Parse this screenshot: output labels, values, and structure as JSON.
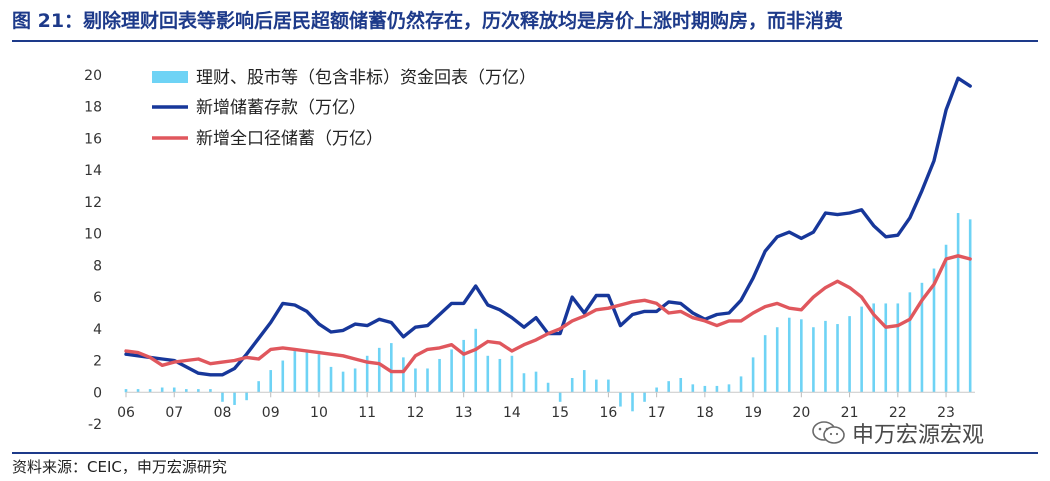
{
  "title": "图 21：剔除理财回表等影响后居民超额储蓄仍然存在，历次释放均是房价上涨时期购房，而非消费",
  "source": "资料来源：CEIC，申万宏源研究",
  "watermark": "申万宏源宏观",
  "watermark_icon": "wechat-icon",
  "colors": {
    "title": "#1d3a8a",
    "bars": "#6ed3f5",
    "deposits": "#17379a",
    "savings": "#e0575d"
  },
  "chart_data": {
    "type": "bar+line",
    "y_range": [
      -2,
      20
    ],
    "y_ticks": [
      "20",
      "18",
      "16",
      "14",
      "12",
      "10",
      "8",
      "6",
      "4",
      "2",
      "0",
      "-2"
    ],
    "x_ticks": [
      "06",
      "07",
      "08",
      "09",
      "10",
      "11",
      "12",
      "13",
      "14",
      "15",
      "16",
      "17",
      "18",
      "19",
      "20",
      "21",
      "22",
      "23"
    ],
    "x_domain": [
      2006.0,
      2023.6
    ],
    "grid": false,
    "legend_position": "top-left",
    "series": [
      {
        "name": "理财、股市等（包含非标）资金回表（万亿）",
        "kind": "bar",
        "x": [
          2006.0,
          2006.25,
          2006.5,
          2006.75,
          2007.0,
          2007.25,
          2007.5,
          2007.75,
          2008.0,
          2008.25,
          2008.5,
          2008.75,
          2009.0,
          2009.25,
          2009.5,
          2009.75,
          2010.0,
          2010.25,
          2010.5,
          2010.75,
          2011.0,
          2011.25,
          2011.5,
          2011.75,
          2012.0,
          2012.25,
          2012.5,
          2012.75,
          2013.0,
          2013.25,
          2013.5,
          2013.75,
          2014.0,
          2014.25,
          2014.5,
          2014.75,
          2015.0,
          2015.25,
          2015.5,
          2015.75,
          2016.0,
          2016.25,
          2016.5,
          2016.75,
          2017.0,
          2017.25,
          2017.5,
          2017.75,
          2018.0,
          2018.25,
          2018.5,
          2018.75,
          2019.0,
          2019.25,
          2019.5,
          2019.75,
          2020.0,
          2020.25,
          2020.5,
          2020.75,
          2021.0,
          2021.25,
          2021.5,
          2021.75,
          2022.0,
          2022.25,
          2022.5,
          2022.75,
          2023.0,
          2023.25,
          2023.5
        ],
        "values": [
          0.2,
          0.2,
          0.2,
          0.3,
          0.3,
          0.2,
          0.2,
          0.2,
          -0.6,
          -0.8,
          -0.5,
          0.7,
          1.4,
          2.0,
          2.6,
          2.7,
          2.4,
          1.6,
          1.3,
          1.5,
          2.3,
          2.8,
          3.1,
          2.2,
          1.5,
          1.5,
          2.1,
          2.7,
          3.3,
          4.0,
          2.3,
          2.1,
          2.3,
          1.2,
          1.3,
          0.6,
          -0.6,
          0.9,
          1.4,
          0.8,
          0.8,
          -0.9,
          -1.2,
          -0.6,
          0.3,
          0.7,
          0.9,
          0.5,
          0.4,
          0.4,
          0.5,
          1.0,
          2.2,
          3.6,
          4.1,
          4.7,
          4.6,
          4.1,
          4.5,
          4.3,
          4.8,
          5.4,
          5.6,
          5.6,
          5.6,
          6.3,
          6.9,
          7.8,
          9.3,
          11.3,
          10.9
        ]
      },
      {
        "name": "新增储蓄存款（万亿）",
        "kind": "line",
        "x": [
          2006.0,
          2006.25,
          2006.5,
          2006.75,
          2007.0,
          2007.25,
          2007.5,
          2007.75,
          2008.0,
          2008.25,
          2008.5,
          2008.75,
          2009.0,
          2009.25,
          2009.5,
          2009.75,
          2010.0,
          2010.25,
          2010.5,
          2010.75,
          2011.0,
          2011.25,
          2011.5,
          2011.75,
          2012.0,
          2012.25,
          2012.5,
          2012.75,
          2013.0,
          2013.25,
          2013.5,
          2013.75,
          2014.0,
          2014.25,
          2014.5,
          2014.75,
          2015.0,
          2015.25,
          2015.5,
          2015.75,
          2016.0,
          2016.25,
          2016.5,
          2016.75,
          2017.0,
          2017.25,
          2017.5,
          2017.75,
          2018.0,
          2018.25,
          2018.5,
          2018.75,
          2019.0,
          2019.25,
          2019.5,
          2019.75,
          2020.0,
          2020.25,
          2020.5,
          2020.75,
          2021.0,
          2021.25,
          2021.5,
          2021.75,
          2022.0,
          2022.25,
          2022.5,
          2022.75,
          2023.0,
          2023.25,
          2023.5
        ],
        "values": [
          2.4,
          2.3,
          2.2,
          2.1,
          2.0,
          1.6,
          1.2,
          1.1,
          1.1,
          1.5,
          2.4,
          3.4,
          4.4,
          5.6,
          5.5,
          5.1,
          4.3,
          3.8,
          3.9,
          4.3,
          4.2,
          4.6,
          4.4,
          3.5,
          4.1,
          4.2,
          4.9,
          5.6,
          5.6,
          6.7,
          5.5,
          5.2,
          4.7,
          4.1,
          4.7,
          3.7,
          3.7,
          6.0,
          5.0,
          6.1,
          6.1,
          4.2,
          4.9,
          5.1,
          5.1,
          5.7,
          5.6,
          5.0,
          4.6,
          4.9,
          5.0,
          5.8,
          7.2,
          8.9,
          9.8,
          10.1,
          9.7,
          10.1,
          11.3,
          11.2,
          11.3,
          11.5,
          10.5,
          9.8,
          9.9,
          11.0,
          12.7,
          14.6,
          17.8,
          19.8,
          19.3
        ]
      },
      {
        "name": "新增全口径储蓄（万亿）",
        "kind": "line",
        "x": [
          2006.0,
          2006.25,
          2006.5,
          2006.75,
          2007.0,
          2007.25,
          2007.5,
          2007.75,
          2008.0,
          2008.25,
          2008.5,
          2008.75,
          2009.0,
          2009.25,
          2009.5,
          2009.75,
          2010.0,
          2010.25,
          2010.5,
          2010.75,
          2011.0,
          2011.25,
          2011.5,
          2011.75,
          2012.0,
          2012.25,
          2012.5,
          2012.75,
          2013.0,
          2013.25,
          2013.5,
          2013.75,
          2014.0,
          2014.25,
          2014.5,
          2014.75,
          2015.0,
          2015.25,
          2015.5,
          2015.75,
          2016.0,
          2016.25,
          2016.5,
          2016.75,
          2017.0,
          2017.25,
          2017.5,
          2017.75,
          2018.0,
          2018.25,
          2018.5,
          2018.75,
          2019.0,
          2019.25,
          2019.5,
          2019.75,
          2020.0,
          2020.25,
          2020.5,
          2020.75,
          2021.0,
          2021.25,
          2021.5,
          2021.75,
          2022.0,
          2022.25,
          2022.5,
          2022.75,
          2023.0,
          2023.25,
          2023.5
        ],
        "values": [
          2.6,
          2.5,
          2.2,
          1.7,
          1.9,
          2.0,
          2.1,
          1.8,
          1.9,
          2.0,
          2.2,
          2.1,
          2.7,
          2.8,
          2.7,
          2.6,
          2.5,
          2.4,
          2.3,
          2.1,
          1.9,
          1.8,
          1.3,
          1.3,
          2.3,
          2.7,
          2.8,
          3.0,
          2.4,
          2.7,
          3.2,
          3.1,
          2.6,
          3.0,
          3.3,
          3.7,
          4.0,
          4.5,
          4.8,
          5.2,
          5.3,
          5.5,
          5.7,
          5.8,
          5.6,
          5.0,
          5.1,
          4.7,
          4.5,
          4.2,
          4.5,
          4.5,
          5.0,
          5.4,
          5.6,
          5.3,
          5.2,
          6.0,
          6.6,
          7.0,
          6.6,
          6.0,
          4.9,
          4.1,
          4.2,
          4.6,
          5.8,
          6.8,
          8.4,
          8.6,
          8.4
        ]
      }
    ]
  }
}
